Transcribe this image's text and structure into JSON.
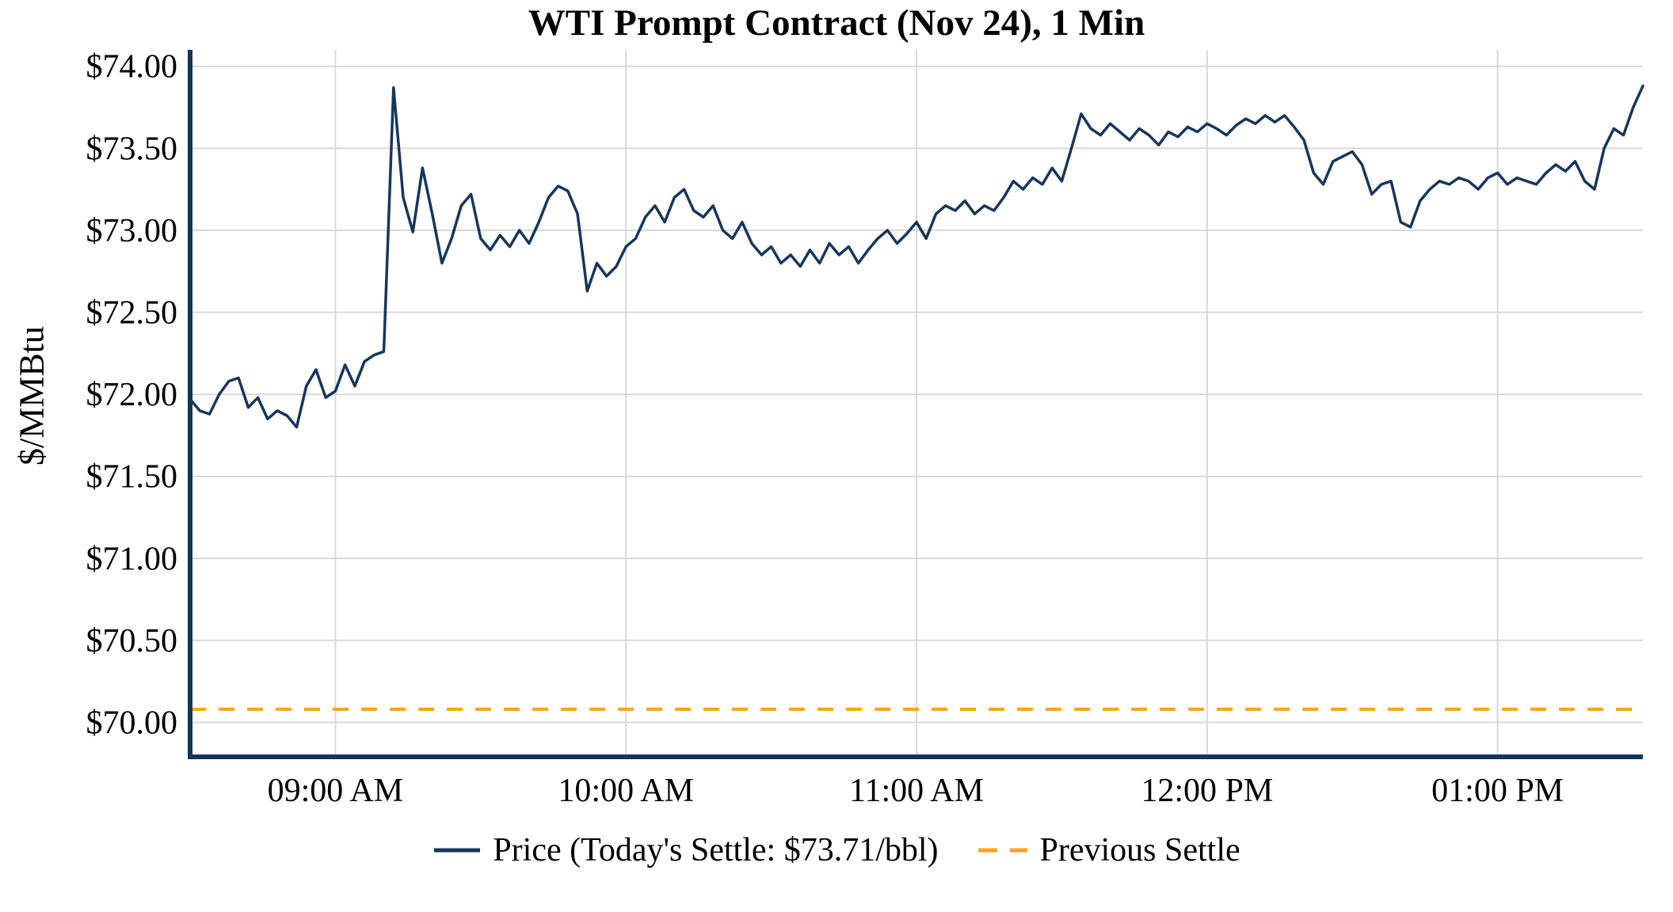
{
  "chart": {
    "title": "WTI Prompt Contract (Nov 24), 1 Min",
    "ylabel": "$/MMBtu",
    "legend": {
      "price_label": "Price (Today's Settle: $73.71/bbl)",
      "prev_settle_label": "Previous Settle"
    }
  },
  "colors": {
    "price": "#17365d",
    "prev_settle": "#FFA500",
    "grid": "#d8d8d8",
    "axis": "#16345a",
    "text": "#000000",
    "background": "#ffffff"
  },
  "chart_data": {
    "type": "line",
    "title": "WTI Prompt Contract (Nov 24), 1 Min",
    "xlabel": "",
    "ylabel": "$/MMBtu",
    "ylim": [
      69.79,
      74.1
    ],
    "grid": true,
    "legend_position": "bottom",
    "x_start_time": "08:30 AM",
    "x_end_time": "01:30 PM",
    "sample_interval_minutes": 2,
    "total_minutes": 300,
    "x_ticks": [
      {
        "minutes": 30,
        "label": "09:00 AM"
      },
      {
        "minutes": 90,
        "label": "10:00 AM"
      },
      {
        "minutes": 150,
        "label": "11:00 AM"
      },
      {
        "minutes": 210,
        "label": "12:00 PM"
      },
      {
        "minutes": 270,
        "label": "01:00 PM"
      }
    ],
    "y_ticks": [
      {
        "value": 70.0,
        "label": "$70.00"
      },
      {
        "value": 70.5,
        "label": "$70.50"
      },
      {
        "value": 71.0,
        "label": "$71.00"
      },
      {
        "value": 71.5,
        "label": "$71.50"
      },
      {
        "value": 72.0,
        "label": "$72.00"
      },
      {
        "value": 72.5,
        "label": "$72.50"
      },
      {
        "value": 73.0,
        "label": "$73.00"
      },
      {
        "value": 73.5,
        "label": "$73.50"
      },
      {
        "value": 74.0,
        "label": "$74.00"
      }
    ],
    "series": [
      {
        "name": "Price",
        "style": "solid",
        "todays_settle": 73.71,
        "values": [
          71.97,
          71.9,
          71.88,
          72.0,
          72.08,
          72.1,
          71.92,
          71.98,
          71.85,
          71.9,
          71.87,
          71.8,
          72.05,
          72.15,
          71.98,
          72.02,
          72.18,
          72.05,
          72.2,
          72.24,
          72.26,
          73.87,
          73.2,
          72.99,
          73.38,
          73.1,
          72.8,
          72.95,
          73.15,
          73.22,
          72.95,
          72.88,
          72.97,
          72.9,
          73.0,
          72.92,
          73.05,
          73.2,
          73.27,
          73.24,
          73.1,
          72.63,
          72.8,
          72.72,
          72.78,
          72.9,
          72.95,
          73.08,
          73.15,
          73.05,
          73.2,
          73.25,
          73.12,
          73.08,
          73.15,
          73.0,
          72.95,
          73.05,
          72.92,
          72.85,
          72.9,
          72.8,
          72.85,
          72.78,
          72.88,
          72.8,
          72.92,
          72.85,
          72.9,
          72.8,
          72.88,
          72.95,
          73.0,
          72.92,
          72.98,
          73.05,
          72.95,
          73.1,
          73.15,
          73.12,
          73.18,
          73.1,
          73.15,
          73.12,
          73.2,
          73.3,
          73.25,
          73.32,
          73.28,
          73.38,
          73.3,
          73.5,
          73.71,
          73.62,
          73.58,
          73.65,
          73.6,
          73.55,
          73.62,
          73.58,
          73.52,
          73.6,
          73.57,
          73.63,
          73.6,
          73.65,
          73.62,
          73.58,
          73.64,
          73.68,
          73.65,
          73.7,
          73.66,
          73.7,
          73.63,
          73.55,
          73.35,
          73.28,
          73.42,
          73.45,
          73.48,
          73.4,
          73.22,
          73.28,
          73.3,
          73.05,
          73.02,
          73.18,
          73.25,
          73.3,
          73.28,
          73.32,
          73.3,
          73.25,
          73.32,
          73.35,
          73.28,
          73.32,
          73.3,
          73.28,
          73.35,
          73.4,
          73.36,
          73.42,
          73.3,
          73.25,
          73.5,
          73.62,
          73.58,
          73.75,
          73.88
        ]
      },
      {
        "name": "Previous Settle",
        "style": "dashed",
        "constant_value": 70.08
      }
    ]
  }
}
